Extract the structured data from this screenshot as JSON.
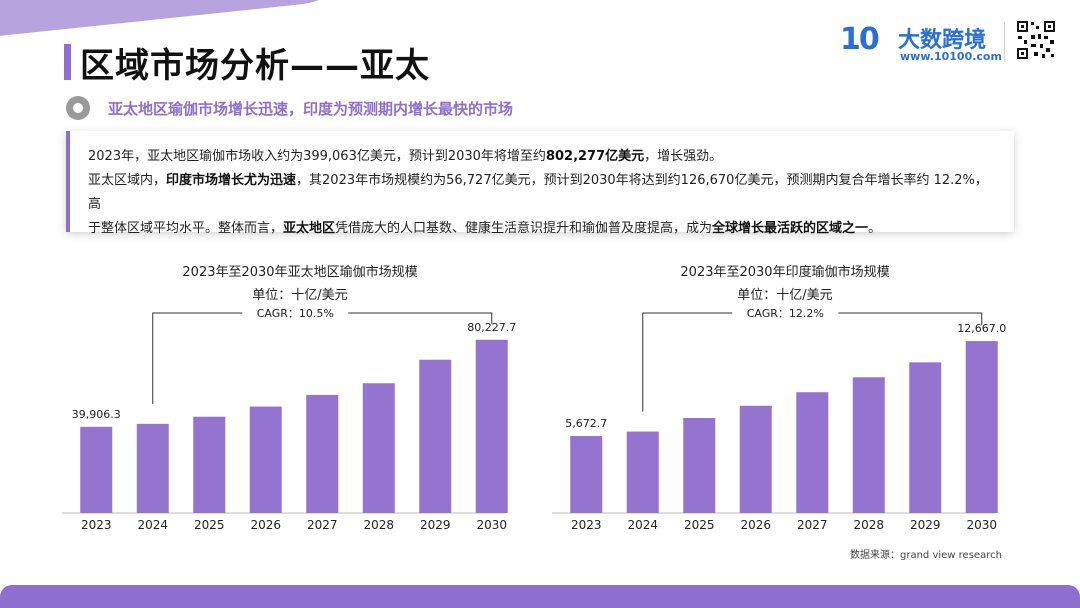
{
  "header": {
    "title": "区域市场分析——亚太",
    "subtitle": "亚太地区瑜伽市场增长迅速，印度为预测期内增长最快的市场",
    "logo_mark": "10",
    "logo_name": "大数跨境",
    "logo_url": "www.10100.com"
  },
  "summary": {
    "line1_a": "2023年，亚太地区瑜伽市场收入约为399,063亿美元，预计到2030年将增至约",
    "line1_b": "802,277亿美元",
    "line1_c": "，增长强劲。",
    "line2_a": "亚太区域内，",
    "line2_b": "印度市场增长尤为迅速",
    "line2_c": "，其2023年市场规模约为56,727亿美元，预计到2030年将达到约126,670亿美元，预测期内复合年增长率约 12.2%，高",
    "line3_a": "于整体区域平均水平。整体而言，",
    "line3_b": "亚太地区",
    "line3_c": "凭借庞大的人口基数、健康生活意识提升和瑜伽普及度提高，成为",
    "line3_d": "全球增长最活跃的区域之一",
    "line3_e": "。"
  },
  "chart_data": [
    {
      "type": "bar",
      "title": "2023年至2030年亚太地区瑜伽市场规模",
      "subtitle": "单位：十亿/美元",
      "categories": [
        "2023",
        "2024",
        "2025",
        "2026",
        "2027",
        "2028",
        "2029",
        "2030"
      ],
      "values": [
        39906.3,
        41300,
        44600,
        49300,
        54700,
        60100,
        71000,
        80227.7
      ],
      "labels": [
        "39,906.3",
        "",
        "",
        "",
        "",
        "",
        "",
        "80,227.7"
      ],
      "cagr_label": "CAGR：10.5%",
      "ylim": [
        0,
        88000
      ],
      "color": "#9474cf"
    },
    {
      "type": "bar",
      "title": "2023年至2030年印度瑜伽市场规模",
      "subtitle": "单位：十亿/美元",
      "categories": [
        "2023",
        "2024",
        "2025",
        "2026",
        "2027",
        "2028",
        "2029",
        "2030"
      ],
      "values": [
        5672.7,
        6000,
        7000,
        7900,
        8900,
        10000,
        11100,
        12667.0
      ],
      "labels": [
        "5,672.7",
        "",
        "",
        "",
        "",
        "",
        "",
        "12,667.0"
      ],
      "cagr_label": "CAGR：12.2%",
      "ylim": [
        0,
        14000
      ],
      "color": "#9474cf"
    }
  ],
  "footer": {
    "source": "数据来源：grand view research"
  },
  "colors": {
    "accent": "#8e6fd0",
    "brand_blue": "#2a6fd6"
  }
}
